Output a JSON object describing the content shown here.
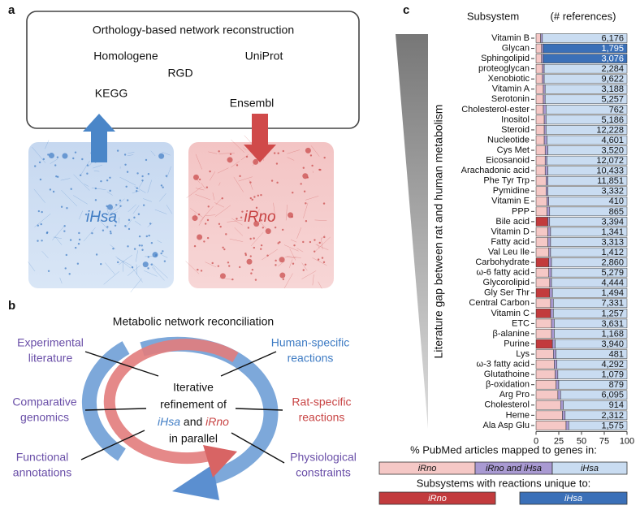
{
  "panel_a": {
    "label": "a",
    "title": "Orthology-based network reconstruction",
    "sources": [
      "Homologene",
      "UniProt",
      "RGD",
      "KEGG",
      "Ensembl"
    ],
    "models": [
      "iHsa",
      "iRno"
    ]
  },
  "panel_b": {
    "label": "b",
    "title": "Metabolic network reconciliation",
    "left": [
      [
        "Experimental",
        "literature"
      ],
      [
        "Comparative",
        "genomics"
      ],
      [
        "Functional",
        "annotations"
      ]
    ],
    "right": [
      [
        "Human-specific",
        "reactions"
      ],
      [
        "Rat-specific",
        "reactions"
      ],
      [
        "Physiological",
        "constraints"
      ]
    ],
    "center": {
      "line1": "Iterative",
      "line2": "refinement of",
      "model_a": "iHsa",
      "and": "and",
      "model_b": "iRno",
      "line4": "in parallel"
    }
  },
  "chart_data": {
    "type": "stacked-hbar",
    "panel_label": "c",
    "category_header": "Subsystem",
    "reference_header": "(# references)",
    "ylabel": "Literature gap between rat and human metabolism",
    "xlabel": "% PubMed articles mapped to genes in:",
    "categories": [
      "Vitamin B",
      "Glycan",
      "Sphingolipid",
      "proteoglycan",
      "Xenobiotic",
      "Vitamin A",
      "Serotonin",
      "Cholesterol-ester",
      "Inositol",
      "Steroid",
      "Nucleotide",
      "Cys Met",
      "Eicosanoid",
      "Arachadonic acid",
      "Phe Tyr Trp",
      "Pymidine",
      "Vitamin E",
      "PPP",
      "Bile acid",
      "Vitamin D",
      "Fatty acid",
      "Val Leu Ile",
      "Carbohydrate",
      "ω-6 fatty acid",
      "Glycorolipid",
      "Gly Ser Thr",
      "Central Carbon",
      "Vitamin C",
      "ETC",
      "β-alanine",
      "Purine",
      "Lys",
      "ω-3 fatty acid",
      "Glutathoine",
      "β-oxidation",
      "Arg Pro",
      "Cholesterol",
      "Heme",
      "Ala Asp Glu"
    ],
    "references": [
      "6,176",
      "1,795",
      "3,076",
      "2,284",
      "9,622",
      "3,188",
      "5,257",
      "762",
      "5,186",
      "12,228",
      "4,601",
      "3,520",
      "12,072",
      "10,433",
      "11,851",
      "3,332",
      "410",
      "865",
      "3,394",
      "1,341",
      "3,313",
      "1,412",
      "2,860",
      "5,279",
      "4,444",
      "1,494",
      "7,331",
      "1,257",
      "3,631",
      "1,168",
      "3,940",
      "481",
      "4,292",
      "1,079",
      "879",
      "6,095",
      "914",
      "2,312",
      "1,575"
    ],
    "series": [
      {
        "name": "iRno",
        "color": "#f5c8c6",
        "values": [
          5,
          6,
          6,
          7,
          7,
          8,
          8,
          8,
          9,
          9,
          9,
          10,
          10,
          10,
          11,
          11,
          12,
          12,
          13,
          13,
          13,
          14,
          14,
          14,
          15,
          15,
          16,
          16,
          17,
          17,
          18,
          19,
          20,
          21,
          22,
          24,
          27,
          29,
          33
        ]
      },
      {
        "name": "iRno and iHsa",
        "color": "#a99ad2",
        "values": [
          2,
          2,
          2,
          2,
          2,
          2,
          2,
          3,
          2,
          2,
          3,
          3,
          2,
          3,
          2,
          2,
          2,
          3,
          2,
          3,
          3,
          2,
          3,
          3,
          2,
          3,
          3,
          3,
          3,
          3,
          3,
          3,
          3,
          3,
          3,
          3,
          3,
          3,
          3
        ]
      },
      {
        "name": "iHsa",
        "color": "#c9dcf1",
        "values": [
          93,
          92,
          92,
          91,
          91,
          90,
          90,
          89,
          89,
          89,
          88,
          87,
          88,
          87,
          87,
          87,
          86,
          85,
          85,
          84,
          84,
          84,
          83,
          83,
          83,
          82,
          81,
          81,
          80,
          80,
          79,
          78,
          77,
          76,
          75,
          73,
          70,
          68,
          64
        ]
      }
    ],
    "unique": [
      null,
      1,
      1,
      null,
      null,
      null,
      null,
      null,
      null,
      null,
      null,
      null,
      null,
      null,
      null,
      null,
      null,
      null,
      0,
      null,
      null,
      null,
      0,
      null,
      null,
      0,
      null,
      0,
      null,
      null,
      0,
      null,
      null,
      null,
      null,
      null,
      null,
      null,
      null
    ],
    "unique_legend": {
      "title": "Subsystems with reactions unique to:",
      "entries": [
        {
          "name": "iRno",
          "color": "#c23b3d"
        },
        {
          "name": "iHsa",
          "color": "#3b70b8"
        }
      ]
    },
    "xlim": [
      0,
      100
    ],
    "xticks": [
      0,
      25,
      50,
      75,
      100
    ]
  }
}
